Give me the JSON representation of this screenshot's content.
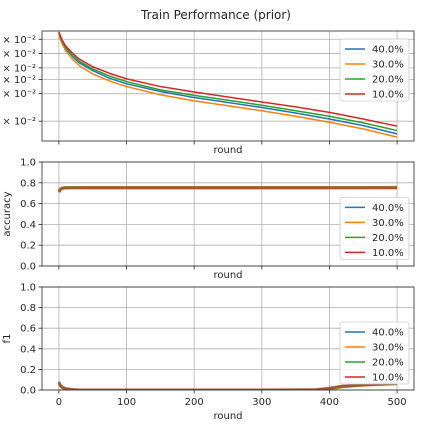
{
  "title": "Train Performance (prior)",
  "chart_data": [
    {
      "type": "line",
      "xlabel": "round",
      "ylabel": "",
      "xlim": [
        -25,
        525
      ],
      "ylim": [
        0.0,
        1.0
      ],
      "ytick_labels": [
        "× 10⁻²",
        "× 10⁻²",
        "× 10⁻²",
        "× 10⁻²",
        "× 10⁻²",
        "× 10⁻²"
      ],
      "grid": true,
      "legend_position": "upper right",
      "legend": [
        "40.0%",
        "30.0%",
        "20.0%",
        "10.0%"
      ],
      "x": [
        0,
        2,
        5,
        10,
        20,
        30,
        50,
        75,
        100,
        150,
        200,
        250,
        300,
        350,
        400,
        450,
        500
      ],
      "series": [
        {
          "name": "40.0%",
          "color": "#1f77b4",
          "values": [
            0.98,
            0.94,
            0.89,
            0.84,
            0.77,
            0.71,
            0.64,
            0.57,
            0.52,
            0.45,
            0.395,
            0.35,
            0.305,
            0.255,
            0.2,
            0.14,
            0.065
          ]
        },
        {
          "name": "30.0%",
          "color": "#ff7f0e",
          "values": [
            0.97,
            0.93,
            0.88,
            0.82,
            0.745,
            0.685,
            0.61,
            0.545,
            0.495,
            0.42,
            0.365,
            0.32,
            0.275,
            0.225,
            0.17,
            0.11,
            0.035
          ]
        },
        {
          "name": "20.0%",
          "color": "#2ca02c",
          "values": [
            0.985,
            0.945,
            0.9,
            0.85,
            0.78,
            0.725,
            0.655,
            0.59,
            0.54,
            0.465,
            0.415,
            0.37,
            0.325,
            0.275,
            0.225,
            0.165,
            0.095
          ]
        },
        {
          "name": "10.0%",
          "color": "#d62728",
          "values": [
            0.99,
            0.96,
            0.915,
            0.865,
            0.8,
            0.745,
            0.675,
            0.615,
            0.565,
            0.495,
            0.445,
            0.4,
            0.355,
            0.31,
            0.26,
            0.2,
            0.135
          ]
        }
      ]
    },
    {
      "type": "line",
      "xlabel": "round",
      "ylabel": "accuracy",
      "xlim": [
        -25,
        525
      ],
      "ylim": [
        0.0,
        1.0
      ],
      "yticks": [
        0.0,
        0.2,
        0.4,
        0.6,
        0.8,
        1.0
      ],
      "ytick_labels": [
        "0.0",
        "0.2",
        "0.4",
        "0.6",
        "0.8",
        "1.0"
      ],
      "grid": true,
      "legend_position": "center right",
      "legend": [
        "40.0%",
        "30.0%",
        "20.0%",
        "10.0%"
      ],
      "x": [
        0,
        2,
        5,
        10,
        20,
        50,
        100,
        200,
        300,
        400,
        500
      ],
      "series": [
        {
          "name": "40.0%",
          "color": "#1f77b4",
          "values": [
            0.72,
            0.74,
            0.75,
            0.75,
            0.75,
            0.75,
            0.75,
            0.75,
            0.75,
            0.75,
            0.75
          ]
        },
        {
          "name": "30.0%",
          "color": "#ff7f0e",
          "values": [
            0.72,
            0.74,
            0.75,
            0.755,
            0.755,
            0.755,
            0.755,
            0.755,
            0.755,
            0.755,
            0.755
          ]
        },
        {
          "name": "20.0%",
          "color": "#2ca02c",
          "values": [
            0.72,
            0.74,
            0.75,
            0.755,
            0.755,
            0.755,
            0.755,
            0.755,
            0.755,
            0.755,
            0.757
          ]
        },
        {
          "name": "10.0%",
          "color": "#d62728",
          "values": [
            0.71,
            0.73,
            0.745,
            0.75,
            0.752,
            0.752,
            0.752,
            0.752,
            0.752,
            0.752,
            0.752
          ]
        }
      ]
    },
    {
      "type": "line",
      "xlabel": "round",
      "ylabel": "f1",
      "xlim": [
        -25,
        525
      ],
      "ylim": [
        0.0,
        1.0
      ],
      "yticks": [
        0.0,
        0.2,
        0.4,
        0.6,
        0.8,
        1.0
      ],
      "ytick_labels": [
        "0.0",
        "0.2",
        "0.4",
        "0.6",
        "0.8",
        "1.0"
      ],
      "xticks": [
        0,
        100,
        200,
        300,
        400,
        500
      ],
      "xtick_labels": [
        "0",
        "100",
        "200",
        "300",
        "400",
        "500"
      ],
      "grid": true,
      "legend_position": "center right",
      "legend": [
        "40.0%",
        "30.0%",
        "20.0%",
        "10.0%"
      ],
      "x": [
        0,
        2,
        5,
        10,
        20,
        30,
        50,
        100,
        200,
        300,
        380,
        400,
        420,
        450,
        500
      ],
      "series": [
        {
          "name": "40.0%",
          "color": "#1f77b4",
          "values": [
            0.08,
            0.05,
            0.03,
            0.015,
            0.005,
            0.0,
            0.0,
            0.0,
            0.0,
            0.0,
            0.0,
            0.015,
            0.035,
            0.05,
            0.06
          ]
        },
        {
          "name": "30.0%",
          "color": "#ff7f0e",
          "values": [
            0.07,
            0.045,
            0.025,
            0.01,
            0.004,
            0.0,
            0.0,
            0.0,
            0.0,
            0.0,
            0.0,
            0.01,
            0.03,
            0.045,
            0.06
          ]
        },
        {
          "name": "20.0%",
          "color": "#2ca02c",
          "values": [
            0.06,
            0.04,
            0.02,
            0.008,
            0.002,
            0.0,
            0.0,
            0.0,
            0.0,
            0.0,
            0.0,
            0.012,
            0.032,
            0.048,
            0.062
          ]
        },
        {
          "name": "10.0%",
          "color": "#d62728",
          "values": [
            0.07,
            0.045,
            0.025,
            0.012,
            0.004,
            0.0,
            0.0,
            0.0,
            0.0,
            0.0,
            0.005,
            0.02,
            0.04,
            0.05,
            0.065
          ]
        }
      ]
    }
  ]
}
